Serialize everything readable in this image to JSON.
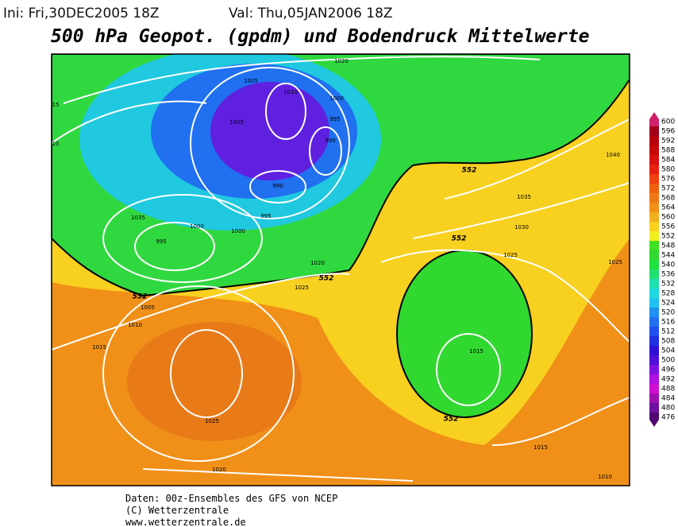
{
  "header": {
    "init": "Ini: Fri,30DEC2005 18Z",
    "valid": "Val: Thu,05JAN2006 18Z",
    "title": "500 hPa Geopot. (gpdm) und Bodendruck Mittelwerte"
  },
  "legend": {
    "levels": [
      600,
      596,
      592,
      588,
      584,
      580,
      576,
      572,
      568,
      564,
      560,
      556,
      552,
      548,
      544,
      540,
      536,
      532,
      528,
      524,
      520,
      516,
      512,
      508,
      504,
      500,
      496,
      492,
      488,
      484,
      480,
      476
    ],
    "colors": [
      "#d0206a",
      "#a00018",
      "#b80010",
      "#c80808",
      "#d81010",
      "#e82010",
      "#f04010",
      "#f06010",
      "#f07818",
      "#f09018",
      "#f0b020",
      "#f8d020",
      "#f0f020",
      "#40e020",
      "#30d830",
      "#20e040",
      "#20e070",
      "#20e0b0",
      "#20d8e0",
      "#20c0f0",
      "#2090f0",
      "#2070f0",
      "#2050f0",
      "#2030e0",
      "#3010d8",
      "#5010d8",
      "#8010e0",
      "#b010e0",
      "#d010d0",
      "#a010b0",
      "#7010a0",
      "#500870"
    ]
  },
  "map": {
    "contour_labels": [
      1005,
      1010,
      1005,
      1000,
      995,
      990,
      990,
      995,
      1000,
      1035,
      995,
      1000,
      1020,
      1025,
      1005,
      1010,
      1015,
      1025,
      1020,
      1020,
      1035,
      1030,
      1025,
      1025,
      1040,
      1015,
      1015,
      1010,
      15,
      10,
      552,
      552,
      552,
      552,
      552,
      552
    ]
  },
  "footer": {
    "lines": [
      "Daten: 00z-Ensembles des GFS von NCEP",
      "(C) Wetterzentrale",
      "www.wetterzentrale.de"
    ]
  }
}
